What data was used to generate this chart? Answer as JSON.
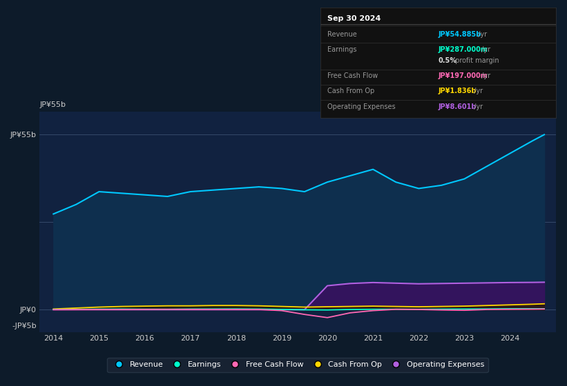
{
  "background_color": "#0d1b2a",
  "plot_bg_color": "#112240",
  "title": "Sep 30 2024",
  "years": [
    2014.0,
    2014.5,
    2015.0,
    2015.5,
    2016.0,
    2016.5,
    2017.0,
    2017.5,
    2018.0,
    2018.5,
    2019.0,
    2019.5,
    2020.0,
    2020.5,
    2021.0,
    2021.5,
    2022.0,
    2022.5,
    2023.0,
    2023.5,
    2024.0,
    2024.5,
    2024.75
  ],
  "revenue": [
    30,
    33,
    37,
    36.5,
    36,
    35.5,
    37,
    37.5,
    38,
    38.5,
    38,
    37,
    40,
    42,
    44,
    40,
    38,
    39,
    41,
    45,
    49,
    53,
    54.885
  ],
  "earnings": [
    0.05,
    0.08,
    0.15,
    0.18,
    0.12,
    0.1,
    0.18,
    0.2,
    0.22,
    0.18,
    0.05,
    -0.05,
    -0.1,
    0.05,
    0.1,
    0.12,
    0.1,
    0.15,
    0.18,
    0.22,
    0.28,
    0.29,
    0.287
  ],
  "free_cash_flow": [
    0.0,
    0.02,
    0.05,
    0.05,
    0.08,
    0.1,
    0.08,
    0.07,
    0.06,
    0.05,
    -0.3,
    -1.5,
    -2.5,
    -1.0,
    -0.3,
    0.1,
    0.05,
    -0.1,
    -0.2,
    0.05,
    0.1,
    0.15,
    0.197
  ],
  "cash_from_op": [
    0.2,
    0.5,
    0.8,
    1.0,
    1.1,
    1.2,
    1.2,
    1.3,
    1.3,
    1.2,
    1.0,
    0.8,
    0.9,
    1.0,
    1.1,
    1.0,
    0.9,
    1.0,
    1.1,
    1.3,
    1.5,
    1.7,
    1.836
  ],
  "operating_expenses": [
    0.0,
    0.0,
    0.0,
    0.0,
    0.0,
    0.0,
    0.0,
    0.0,
    0.0,
    0.0,
    0.0,
    0.0,
    7.5,
    8.2,
    8.5,
    8.3,
    8.1,
    8.2,
    8.3,
    8.4,
    8.5,
    8.55,
    8.601
  ],
  "revenue_color": "#00c8ff",
  "earnings_color": "#00ffcc",
  "free_cash_flow_color": "#ff69b4",
  "cash_from_op_color": "#ffd700",
  "operating_expenses_color": "#b060e0",
  "revenue_fill_color": "#0e2f4e",
  "operating_expenses_fill_color": "#3a1060",
  "ylim": [
    -7,
    62
  ],
  "xtick_start": 2014,
  "xtick_end": 2024,
  "legend_labels": [
    "Revenue",
    "Earnings",
    "Free Cash Flow",
    "Cash From Op",
    "Operating Expenses"
  ],
  "legend_colors": [
    "#00c8ff",
    "#00ffcc",
    "#ff69b4",
    "#ffd700",
    "#b060e0"
  ],
  "info_box_title": "Sep 30 2024",
  "info_rows": [
    {
      "label": "Revenue",
      "value": "JP¥54.885b",
      "unit": " /yr",
      "color": "#00c8ff"
    },
    {
      "label": "Earnings",
      "value": "JP¥287.000m",
      "unit": " /yr",
      "color": "#00ffcc"
    },
    {
      "label": "",
      "value": "0.5%",
      "unit": " profit margin",
      "color": "#dddddd"
    },
    {
      "label": "Free Cash Flow",
      "value": "JP¥197.000m",
      "unit": " /yr",
      "color": "#ff69b4"
    },
    {
      "label": "Cash From Op",
      "value": "JP¥1.836b",
      "unit": " /yr",
      "color": "#ffd700"
    },
    {
      "label": "Operating Expenses",
      "value": "JP¥8.601b",
      "unit": " /yr",
      "color": "#b060e0"
    }
  ]
}
